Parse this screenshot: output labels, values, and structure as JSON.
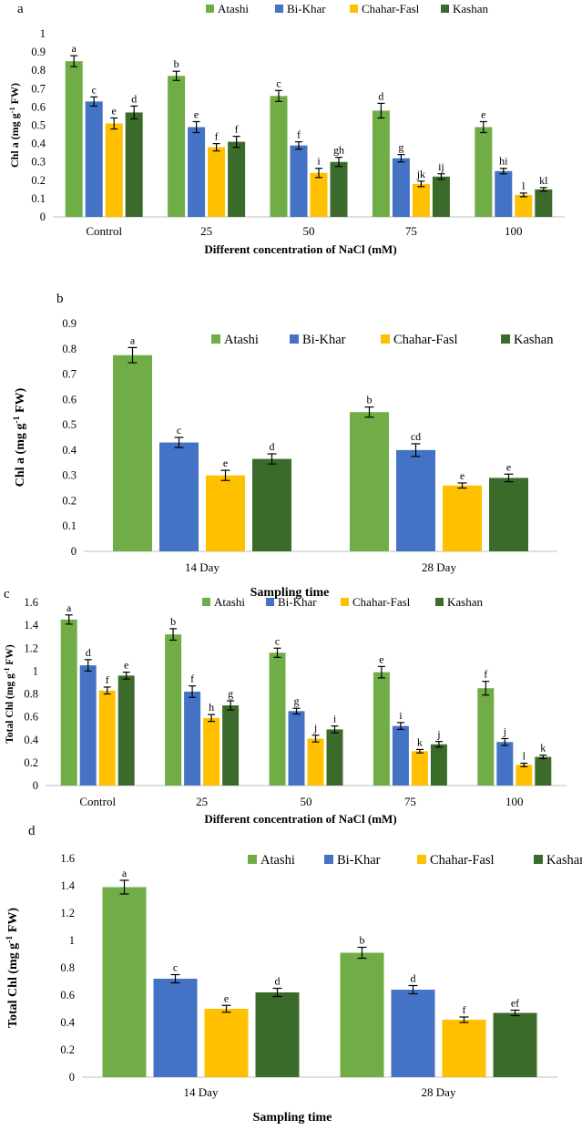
{
  "colors": {
    "Atashi": "#70AD47",
    "Bi-Khar": "#4472C4",
    "Chahar-Fasl": "#FFC000",
    "Kashan": "#3B6B2A"
  },
  "chart_data": [
    {
      "panel": "a",
      "type": "bar",
      "ylabel_main": "Chl a (mg g",
      "ylabel_sup": "-1",
      "ylabel_rest": " FW)",
      "xlabel": "Different concentration of NaCl (mM)",
      "ylim": [
        0,
        1
      ],
      "yticks": [
        "0",
        "0.1",
        "0.2",
        "0.3",
        "0.4",
        "0.5",
        "0.6",
        "0.7",
        "0.8",
        "0.9",
        "1"
      ],
      "categories": [
        "Control",
        "25",
        "50",
        "75",
        "100"
      ],
      "series": [
        {
          "name": "Atashi",
          "values": [
            0.85,
            0.77,
            0.66,
            0.58,
            0.49
          ],
          "errors": [
            0.03,
            0.025,
            0.03,
            0.04,
            0.03
          ],
          "letters": [
            "a",
            "b",
            "c",
            "d",
            "e"
          ]
        },
        {
          "name": "Bi-Khar",
          "values": [
            0.63,
            0.49,
            0.39,
            0.32,
            0.25
          ],
          "errors": [
            0.025,
            0.03,
            0.02,
            0.02,
            0.015
          ],
          "letters": [
            "c",
            "e",
            "f",
            "g",
            "hi"
          ]
        },
        {
          "name": "Chahar-Fasl",
          "values": [
            0.51,
            0.38,
            0.24,
            0.18,
            0.12
          ],
          "errors": [
            0.03,
            0.02,
            0.025,
            0.015,
            0.01
          ],
          "letters": [
            "e",
            "f",
            "i",
            "jk",
            "l"
          ]
        },
        {
          "name": "Kashan",
          "values": [
            0.57,
            0.41,
            0.3,
            0.22,
            0.15
          ],
          "errors": [
            0.035,
            0.03,
            0.025,
            0.015,
            0.01
          ],
          "letters": [
            "d",
            "f",
            "gh",
            "ij",
            "kl"
          ]
        }
      ]
    },
    {
      "panel": "b",
      "type": "bar",
      "ylabel_main": "Chl a (mg g",
      "ylabel_sup": "-1",
      "ylabel_rest": " FW)",
      "xlabel": "Sampling time",
      "ylim": [
        0,
        0.9
      ],
      "yticks": [
        "0",
        "0.1",
        "0.2",
        "0.3",
        "0.4",
        "0.5",
        "0.6",
        "0.7",
        "0.8",
        "0.9"
      ],
      "categories": [
        "14 Day",
        "28 Day"
      ],
      "series": [
        {
          "name": "Atashi",
          "values": [
            0.775,
            0.55
          ],
          "errors": [
            0.03,
            0.02
          ],
          "letters": [
            "a",
            "b"
          ]
        },
        {
          "name": "Bi-Khar",
          "values": [
            0.43,
            0.4
          ],
          "errors": [
            0.02,
            0.025
          ],
          "letters": [
            "c",
            "cd"
          ]
        },
        {
          "name": "Chahar-Fasl",
          "values": [
            0.3,
            0.26
          ],
          "errors": [
            0.02,
            0.01
          ],
          "letters": [
            "e",
            "e"
          ]
        },
        {
          "name": "Kashan",
          "values": [
            0.365,
            0.29
          ],
          "errors": [
            0.02,
            0.015
          ],
          "letters": [
            "d",
            "e"
          ]
        }
      ]
    },
    {
      "panel": "c",
      "type": "bar",
      "ylabel_main": "Total Chl (mg g",
      "ylabel_sup": "-1",
      "ylabel_rest": " FW)",
      "xlabel": "Different concentration of NaCl (mM)",
      "ylim": [
        0,
        1.6
      ],
      "yticks": [
        "0",
        "0.2",
        "0.4",
        "0.6",
        "0.8",
        "1",
        "1.2",
        "1.4",
        "1.6"
      ],
      "categories": [
        "Control",
        "25",
        "50",
        "75",
        "100"
      ],
      "series": [
        {
          "name": "Atashi",
          "values": [
            1.45,
            1.32,
            1.16,
            0.99,
            0.85
          ],
          "errors": [
            0.04,
            0.05,
            0.04,
            0.05,
            0.06
          ],
          "letters": [
            "a",
            "b",
            "c",
            "e",
            "f"
          ]
        },
        {
          "name": "Bi-Khar",
          "values": [
            1.05,
            0.82,
            0.65,
            0.52,
            0.38
          ],
          "errors": [
            0.05,
            0.05,
            0.025,
            0.03,
            0.03
          ],
          "letters": [
            "d",
            "f",
            "g",
            "i",
            "j"
          ]
        },
        {
          "name": "Chahar-Fasl",
          "values": [
            0.83,
            0.59,
            0.41,
            0.3,
            0.18
          ],
          "errors": [
            0.03,
            0.03,
            0.03,
            0.015,
            0.015
          ],
          "letters": [
            "f",
            "h",
            "j",
            "k",
            "l"
          ]
        },
        {
          "name": "Kashan",
          "values": [
            0.96,
            0.7,
            0.49,
            0.36,
            0.25
          ],
          "errors": [
            0.03,
            0.04,
            0.03,
            0.025,
            0.015
          ],
          "letters": [
            "e",
            "g",
            "i",
            "j",
            "k"
          ]
        }
      ]
    },
    {
      "panel": "d",
      "type": "bar",
      "ylabel_main": "Total Chl (mg g",
      "ylabel_sup": "-1",
      "ylabel_rest": " FW)",
      "xlabel": "Sampling time",
      "ylim": [
        0,
        1.6
      ],
      "yticks": [
        "0",
        "0.2",
        "0.4",
        "0.6",
        "0.8",
        "1",
        "1.2",
        "1.4",
        "1.6"
      ],
      "categories": [
        "14 Day",
        "28 Day"
      ],
      "series": [
        {
          "name": "Atashi",
          "values": [
            1.39,
            0.91
          ],
          "errors": [
            0.05,
            0.04
          ],
          "letters": [
            "a",
            "b"
          ]
        },
        {
          "name": "Bi-Khar",
          "values": [
            0.72,
            0.64
          ],
          "errors": [
            0.03,
            0.03
          ],
          "letters": [
            "c",
            "d"
          ]
        },
        {
          "name": "Chahar-Fasl",
          "values": [
            0.5,
            0.42
          ],
          "errors": [
            0.025,
            0.02
          ],
          "letters": [
            "e",
            "f"
          ]
        },
        {
          "name": "Kashan",
          "values": [
            0.62,
            0.47
          ],
          "errors": [
            0.03,
            0.02
          ],
          "letters": [
            "d",
            "ef"
          ]
        }
      ]
    }
  ]
}
